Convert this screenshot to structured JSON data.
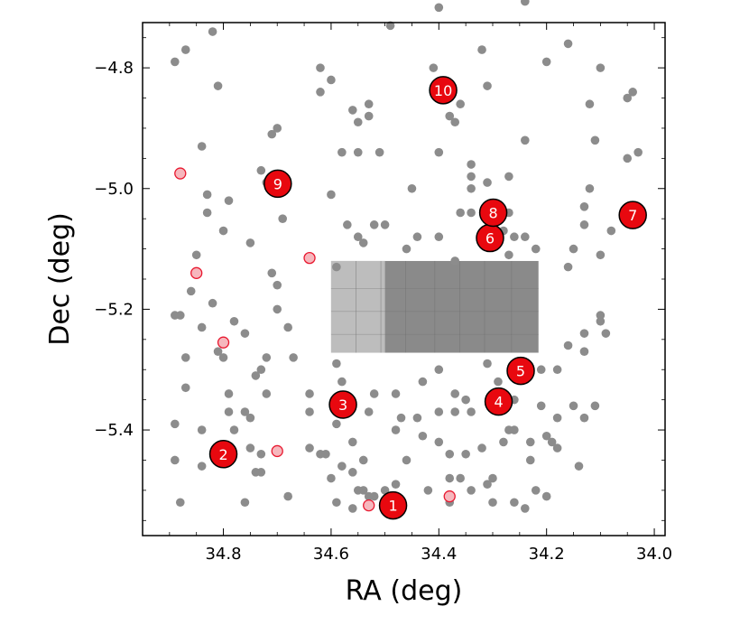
{
  "chart_data": {
    "type": "scatter",
    "xlabel": "RA (deg)",
    "ylabel": "Dec (deg)",
    "xlim": [
      34.95,
      33.98
    ],
    "ylim": [
      -5.575,
      -4.725
    ],
    "x_reversed": true,
    "x_ticks": [
      34.8,
      34.6,
      34.4,
      34.2,
      34.0
    ],
    "x_tick_labels": [
      "34.8",
      "34.6",
      "34.4",
      "34.2",
      "34.0"
    ],
    "y_ticks": [
      -4.8,
      -5.0,
      -5.2,
      -5.4
    ],
    "y_tick_labels": [
      "−4.8",
      "−5.0",
      "−5.2",
      "−5.4"
    ],
    "grid": false,
    "colors": {
      "background_point": "#8c8c8c",
      "highlight_point_fill": "#f6b7bd",
      "highlight_point_edge": "#e8182f",
      "numbered_fill": "#e8080f",
      "numbered_edge": "#000000",
      "image_light": "#bdbdbd",
      "image_dark": "#8a8a8a"
    },
    "image_region": {
      "ra_range": [
        34.6,
        34.215
      ],
      "dec_range": [
        -5.12,
        -5.272
      ],
      "light_part_ra_range": [
        34.6,
        34.5
      ]
    },
    "series": [
      {
        "name": "",
        "style": "background",
        "points": [
          [
            34.89,
            -4.79
          ],
          [
            34.87,
            -4.77
          ],
          [
            34.82,
            -4.74
          ],
          [
            34.81,
            -4.83
          ],
          [
            34.7,
            -4.9
          ],
          [
            34.73,
            -4.97
          ],
          [
            34.84,
            -4.93
          ],
          [
            34.83,
            -5.01
          ],
          [
            34.79,
            -5.02
          ],
          [
            34.8,
            -5.07
          ],
          [
            34.83,
            -5.04
          ],
          [
            34.71,
            -4.91
          ],
          [
            34.72,
            -4.99
          ],
          [
            34.75,
            -5.09
          ],
          [
            34.69,
            -5.05
          ],
          [
            34.71,
            -5.14
          ],
          [
            34.7,
            -5.16
          ],
          [
            34.68,
            -5.23
          ],
          [
            34.85,
            -5.11
          ],
          [
            34.86,
            -5.17
          ],
          [
            34.89,
            -5.21
          ],
          [
            34.88,
            -5.21
          ],
          [
            34.84,
            -5.23
          ],
          [
            34.82,
            -5.19
          ],
          [
            34.81,
            -5.27
          ],
          [
            34.8,
            -5.28
          ],
          [
            34.78,
            -5.22
          ],
          [
            34.76,
            -5.24
          ],
          [
            34.74,
            -5.31
          ],
          [
            34.73,
            -5.3
          ],
          [
            34.72,
            -5.28
          ],
          [
            34.72,
            -5.34
          ],
          [
            34.7,
            -5.2
          ],
          [
            34.67,
            -5.28
          ],
          [
            34.75,
            -5.38
          ],
          [
            34.76,
            -5.37
          ],
          [
            34.79,
            -5.37
          ],
          [
            34.79,
            -5.34
          ],
          [
            34.78,
            -5.4
          ],
          [
            34.75,
            -5.43
          ],
          [
            34.84,
            -5.4
          ],
          [
            34.87,
            -5.28
          ],
          [
            34.87,
            -5.33
          ],
          [
            34.89,
            -5.39
          ],
          [
            34.89,
            -5.45
          ],
          [
            34.84,
            -5.46
          ],
          [
            34.88,
            -5.52
          ],
          [
            34.76,
            -5.52
          ],
          [
            34.73,
            -5.47
          ],
          [
            34.73,
            -5.44
          ],
          [
            34.74,
            -5.47
          ],
          [
            34.68,
            -5.51
          ],
          [
            34.62,
            -4.8
          ],
          [
            34.62,
            -4.84
          ],
          [
            34.6,
            -4.82
          ],
          [
            34.56,
            -4.87
          ],
          [
            34.55,
            -4.89
          ],
          [
            34.53,
            -4.88
          ],
          [
            34.53,
            -4.86
          ],
          [
            34.58,
            -4.94
          ],
          [
            34.55,
            -4.94
          ],
          [
            34.51,
            -4.94
          ],
          [
            34.6,
            -5.01
          ],
          [
            34.57,
            -5.06
          ],
          [
            34.54,
            -5.09
          ],
          [
            34.55,
            -5.08
          ],
          [
            34.52,
            -5.06
          ],
          [
            34.5,
            -5.06
          ],
          [
            34.59,
            -5.13
          ],
          [
            34.49,
            -4.73
          ],
          [
            34.45,
            -5.0
          ],
          [
            34.44,
            -5.08
          ],
          [
            34.46,
            -5.1
          ],
          [
            34.59,
            -5.29
          ],
          [
            34.58,
            -5.32
          ],
          [
            34.57,
            -5.35
          ],
          [
            34.59,
            -5.39
          ],
          [
            34.56,
            -5.42
          ],
          [
            34.54,
            -5.45
          ],
          [
            34.53,
            -5.37
          ],
          [
            34.52,
            -5.34
          ],
          [
            34.48,
            -5.34
          ],
          [
            34.47,
            -5.38
          ],
          [
            34.48,
            -5.4
          ],
          [
            34.46,
            -5.45
          ],
          [
            34.48,
            -5.49
          ],
          [
            34.5,
            -5.5
          ],
          [
            34.53,
            -5.51
          ],
          [
            34.56,
            -5.47
          ],
          [
            34.58,
            -5.46
          ],
          [
            34.6,
            -5.48
          ],
          [
            34.61,
            -5.44
          ],
          [
            34.62,
            -5.44
          ],
          [
            34.64,
            -5.43
          ],
          [
            34.64,
            -5.37
          ],
          [
            34.64,
            -5.34
          ],
          [
            34.59,
            -5.52
          ],
          [
            34.56,
            -5.53
          ],
          [
            34.54,
            -5.5
          ],
          [
            34.52,
            -5.51
          ],
          [
            34.55,
            -5.5
          ],
          [
            34.44,
            -5.38
          ],
          [
            34.43,
            -5.32
          ],
          [
            34.4,
            -5.3
          ],
          [
            34.4,
            -5.37
          ],
          [
            34.41,
            -4.68
          ],
          [
            34.4,
            -4.7
          ],
          [
            34.41,
            -4.8
          ],
          [
            34.38,
            -4.88
          ],
          [
            34.37,
            -4.89
          ],
          [
            34.36,
            -4.86
          ],
          [
            34.4,
            -4.94
          ],
          [
            34.34,
            -4.96
          ],
          [
            34.34,
            -4.98
          ],
          [
            34.31,
            -4.99
          ],
          [
            34.27,
            -4.98
          ],
          [
            34.32,
            -4.77
          ],
          [
            34.31,
            -4.83
          ],
          [
            34.36,
            -5.04
          ],
          [
            34.34,
            -5.04
          ],
          [
            34.34,
            -5.0
          ],
          [
            34.4,
            -5.08
          ],
          [
            34.37,
            -5.12
          ],
          [
            34.31,
            -5.07
          ],
          [
            34.28,
            -5.07
          ],
          [
            34.26,
            -5.08
          ],
          [
            34.3,
            -5.06
          ],
          [
            34.27,
            -5.04
          ],
          [
            34.24,
            -4.69
          ],
          [
            34.2,
            -4.79
          ],
          [
            34.16,
            -4.76
          ],
          [
            34.1,
            -4.8
          ],
          [
            34.12,
            -4.86
          ],
          [
            34.11,
            -4.92
          ],
          [
            34.12,
            -5.0
          ],
          [
            34.13,
            -5.03
          ],
          [
            34.13,
            -5.06
          ],
          [
            34.15,
            -5.1
          ],
          [
            34.16,
            -5.13
          ],
          [
            34.1,
            -5.11
          ],
          [
            34.08,
            -5.07
          ],
          [
            34.05,
            -4.85
          ],
          [
            34.04,
            -4.84
          ],
          [
            34.05,
            -4.95
          ],
          [
            34.03,
            -4.94
          ],
          [
            34.24,
            -4.92
          ],
          [
            34.22,
            -5.1
          ],
          [
            34.24,
            -5.08
          ],
          [
            34.27,
            -5.11
          ],
          [
            34.09,
            -5.24
          ],
          [
            34.1,
            -5.22
          ],
          [
            34.1,
            -5.21
          ],
          [
            34.13,
            -5.24
          ],
          [
            34.13,
            -5.27
          ],
          [
            34.16,
            -5.26
          ],
          [
            34.18,
            -5.3
          ],
          [
            34.21,
            -5.3
          ],
          [
            34.21,
            -5.36
          ],
          [
            34.18,
            -5.38
          ],
          [
            34.15,
            -5.36
          ],
          [
            34.13,
            -5.38
          ],
          [
            34.11,
            -5.36
          ],
          [
            34.14,
            -5.46
          ],
          [
            34.18,
            -5.43
          ],
          [
            34.19,
            -5.42
          ],
          [
            34.2,
            -5.41
          ],
          [
            34.23,
            -5.42
          ],
          [
            34.27,
            -5.4
          ],
          [
            34.28,
            -5.42
          ],
          [
            34.23,
            -5.45
          ],
          [
            34.3,
            -5.48
          ],
          [
            34.31,
            -5.49
          ],
          [
            34.32,
            -5.43
          ],
          [
            34.35,
            -5.44
          ],
          [
            34.36,
            -5.48
          ],
          [
            34.38,
            -5.44
          ],
          [
            34.38,
            -5.48
          ],
          [
            34.34,
            -5.37
          ],
          [
            34.35,
            -5.35
          ],
          [
            34.37,
            -5.34
          ],
          [
            34.37,
            -5.37
          ],
          [
            34.31,
            -5.29
          ],
          [
            34.29,
            -5.32
          ],
          [
            34.26,
            -5.35
          ],
          [
            34.26,
            -5.4
          ],
          [
            34.2,
            -5.51
          ],
          [
            34.22,
            -5.5
          ],
          [
            34.24,
            -5.53
          ],
          [
            34.26,
            -5.52
          ],
          [
            34.3,
            -5.52
          ],
          [
            34.34,
            -5.5
          ],
          [
            34.38,
            -5.52
          ],
          [
            34.4,
            -5.42
          ],
          [
            34.43,
            -5.41
          ],
          [
            34.42,
            -5.5
          ]
        ]
      },
      {
        "name": "",
        "style": "highlight",
        "points": [
          [
            34.88,
            -4.975
          ],
          [
            34.85,
            -5.14
          ],
          [
            34.8,
            -5.255
          ],
          [
            34.7,
            -5.435
          ],
          [
            34.64,
            -5.115
          ],
          [
            34.53,
            -5.525
          ],
          [
            34.38,
            -5.51
          ]
        ]
      },
      {
        "name": "",
        "style": "numbered",
        "points": [
          {
            "ra": 34.485,
            "dec": -5.525,
            "label": "1"
          },
          {
            "ra": 34.8,
            "dec": -5.44,
            "label": "2"
          },
          {
            "ra": 34.578,
            "dec": -5.358,
            "label": "3"
          },
          {
            "ra": 34.289,
            "dec": -5.353,
            "label": "4"
          },
          {
            "ra": 34.248,
            "dec": -5.302,
            "label": "5"
          },
          {
            "ra": 34.305,
            "dec": -5.082,
            "label": "6"
          },
          {
            "ra": 34.04,
            "dec": -5.044,
            "label": "7"
          },
          {
            "ra": 34.299,
            "dec": -5.04,
            "label": "8"
          },
          {
            "ra": 34.699,
            "dec": -4.992,
            "label": "9"
          },
          {
            "ra": 34.392,
            "dec": -4.837,
            "label": "10"
          }
        ]
      }
    ]
  }
}
